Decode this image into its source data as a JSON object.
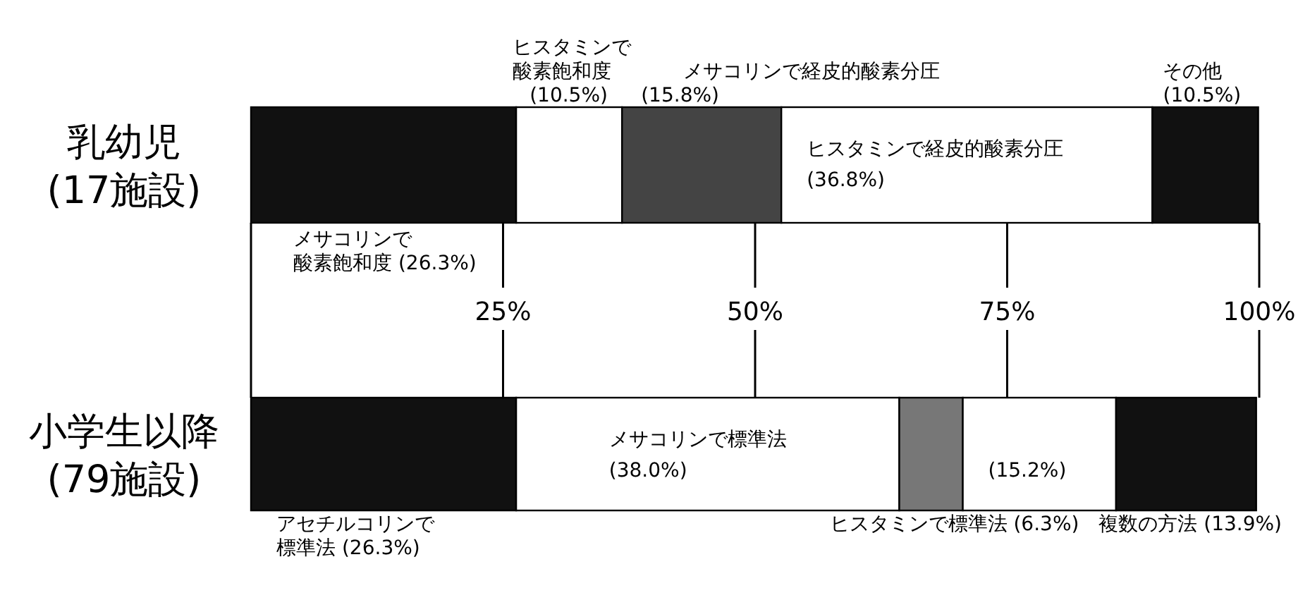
{
  "chart_data": {
    "type": "bar",
    "orientation": "horizontal",
    "stacked": true,
    "categories": [
      "乳幼児 (17施設)",
      "小学生以降 (79施設)"
    ],
    "xlim": [
      0,
      100
    ],
    "xticks": [
      {
        "value": 25,
        "label": "25%"
      },
      {
        "value": 50,
        "label": "50%"
      },
      {
        "value": 75,
        "label": "75%"
      },
      {
        "value": 100,
        "label": "100%"
      }
    ],
    "series": [
      {
        "name": "メサコリンで酸素飽和度",
        "color": "#111111",
        "values": [
          26.3,
          null
        ],
        "value_labels": [
          "(26.3%)",
          null
        ]
      },
      {
        "name": "ヒスタミンで酸素飽和度",
        "color": "#ffffff",
        "values": [
          10.5,
          null
        ],
        "value_labels": [
          "(10.5%)",
          null
        ]
      },
      {
        "name": "メサコリンで経皮的酸素分圧",
        "color": "#444444",
        "values": [
          15.8,
          null
        ],
        "value_labels": [
          "(15.8%)",
          null
        ]
      },
      {
        "name": "ヒスタミンで経皮的酸素分圧",
        "color": "#ffffff",
        "values": [
          36.8,
          null
        ],
        "value_labels": [
          "(36.8%)",
          null
        ]
      },
      {
        "name": "その他",
        "color": "#111111",
        "values": [
          10.5,
          null
        ],
        "value_labels": [
          "(10.5%)",
          null
        ]
      },
      {
        "name": "アセチルコリンで標準法",
        "color": "#111111",
        "values": [
          null,
          26.3
        ],
        "value_labels": [
          null,
          "(26.3%)"
        ]
      },
      {
        "name": "メサコリンで標準法",
        "color": "#ffffff",
        "values": [
          null,
          38.0
        ],
        "value_labels": [
          null,
          "(38.0%)"
        ]
      },
      {
        "name": "ヒスタミンで標準法",
        "color": "#777777",
        "values": [
          null,
          6.3
        ],
        "value_labels": [
          null,
          "(6.3%)"
        ]
      },
      {
        "color": "#ffffff",
        "values": [
          null,
          15.2
        ],
        "value_labels": [
          null,
          "(15.2%)"
        ]
      },
      {
        "name": "複数の方法",
        "color": "#111111",
        "values": [
          null,
          13.9
        ],
        "value_labels": [
          null,
          "(13.9%)"
        ]
      }
    ],
    "legend": false
  }
}
